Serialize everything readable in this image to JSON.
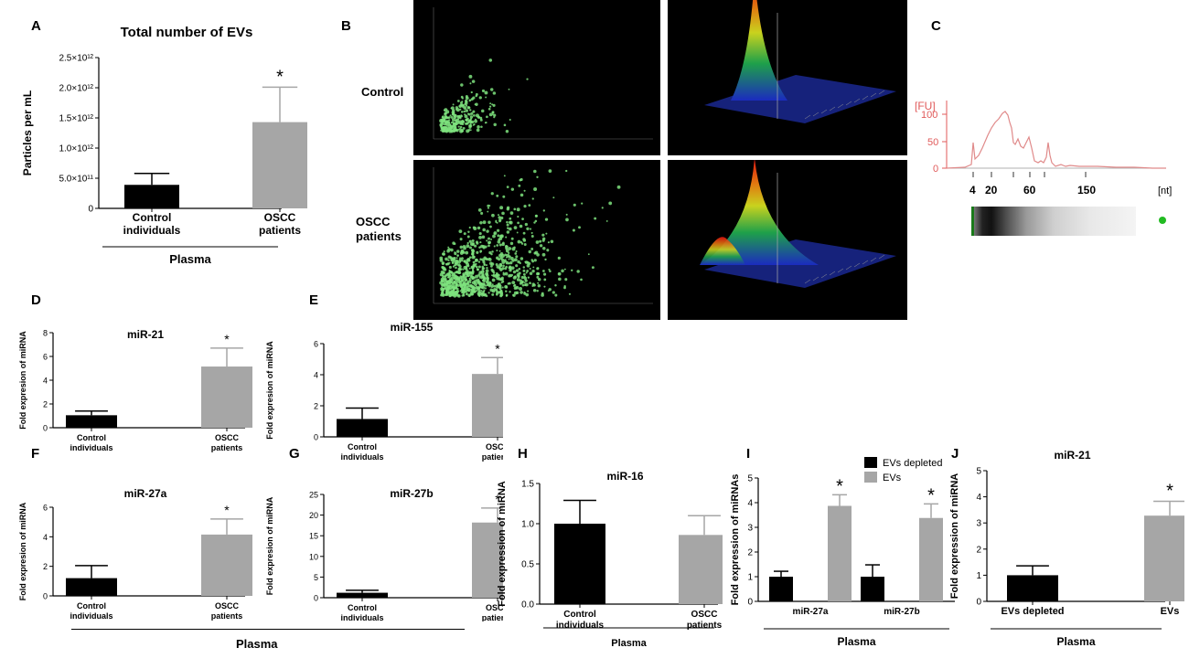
{
  "panels": {
    "A": {
      "letter": "A"
    },
    "B": {
      "letter": "B"
    },
    "C": {
      "letter": "C"
    },
    "D": {
      "letter": "D"
    },
    "E": {
      "letter": "E"
    },
    "F": {
      "letter": "F"
    },
    "G": {
      "letter": "G"
    },
    "H": {
      "letter": "H"
    },
    "I": {
      "letter": "I"
    },
    "J": {
      "letter": "J"
    }
  },
  "nta": {
    "row_control": "Control",
    "row_oscc_1": "OSCC",
    "row_oscc_2": "patients"
  },
  "bioanalyzer": {
    "ylabel": "[FU]",
    "yticks": [
      "100",
      "50",
      "0"
    ],
    "xticks": [
      "4",
      "20",
      "60",
      "150"
    ],
    "xunit": "[nt]",
    "ladder_color": "#2a8a2a",
    "dot_color": "#22bb22"
  },
  "plasma_label": "Plasma",
  "chart_data": [
    {
      "id": "A",
      "type": "bar",
      "title": "Total number of EVs",
      "ylabel": "Particles per mL",
      "categories": [
        "Control individuals",
        "OSCC patients"
      ],
      "cat_lines": [
        [
          "Control",
          "individuals"
        ],
        [
          "OSCC",
          "patients"
        ]
      ],
      "values": [
        390000000000.0,
        1430000000000.0
      ],
      "errors": [
        190000000000.0,
        580000000000.0
      ],
      "ylim": [
        0,
        2500000000000.0
      ],
      "ytick_values": [
        0,
        500000000000.0,
        1000000000000.0,
        1500000000000.0,
        2000000000000.0,
        2500000000000.0
      ],
      "ytick_labels": [
        "0",
        "5.0×10¹¹",
        "1.0×10¹²",
        "1.5×10¹²",
        "2.0×10¹²",
        "2.5×10¹²"
      ],
      "significance": [
        "",
        "*"
      ],
      "group_label": "Plasma",
      "colors": [
        "#000000",
        "#a6a6a6"
      ]
    },
    {
      "id": "D",
      "type": "bar",
      "title": "miR-21",
      "ylabel": "Fold expresion of miRNA",
      "categories": [
        "Control individuals",
        "OSCC patients"
      ],
      "cat_lines": [
        [
          "Control",
          "individuals"
        ],
        [
          "OSCC",
          "patients"
        ]
      ],
      "values": [
        1.05,
        5.15
      ],
      "errors": [
        0.35,
        1.55
      ],
      "ylim": [
        0,
        8
      ],
      "ytick_values": [
        0,
        2,
        4,
        6,
        8
      ],
      "ytick_labels": [
        "0",
        "2",
        "4",
        "6",
        "8"
      ],
      "significance": [
        "",
        "*"
      ],
      "colors": [
        "#000000",
        "#a6a6a6"
      ]
    },
    {
      "id": "E",
      "type": "bar",
      "title": "miR-155",
      "ylabel": "Fold expresion of miRNA",
      "categories": [
        "Control individuals",
        "OSCC patients"
      ],
      "cat_lines": [
        [
          "Control",
          "individuals"
        ],
        [
          "OSCC",
          "patients"
        ]
      ],
      "values": [
        1.15,
        4.05
      ],
      "errors": [
        0.7,
        1.05
      ],
      "ylim": [
        0,
        6
      ],
      "ytick_values": [
        0,
        2,
        4,
        6
      ],
      "ytick_labels": [
        "0",
        "2",
        "4",
        "6"
      ],
      "significance": [
        "",
        "*"
      ],
      "colors": [
        "#000000",
        "#a6a6a6"
      ]
    },
    {
      "id": "F",
      "type": "bar",
      "title": "miR-27a",
      "ylabel": "Fold expresion of miRNA",
      "categories": [
        "Control individuals",
        "OSCC patients"
      ],
      "cat_lines": [
        [
          "Control",
          "individuals"
        ],
        [
          "OSCC",
          "patients"
        ]
      ],
      "values": [
        1.2,
        4.15
      ],
      "errors": [
        0.85,
        1.05
      ],
      "ylim": [
        0,
        6
      ],
      "ytick_values": [
        0,
        2,
        4,
        6
      ],
      "ytick_labels": [
        "0",
        "2",
        "4",
        "6"
      ],
      "significance": [
        "",
        "*"
      ],
      "colors": [
        "#000000",
        "#a6a6a6"
      ]
    },
    {
      "id": "G",
      "type": "bar",
      "title": "miR-27b",
      "ylabel": "Fold expresion of miRNA",
      "categories": [
        "Control individuals",
        "OSCC patients"
      ],
      "cat_lines": [
        [
          "Control",
          "individuals"
        ],
        [
          "OSCC",
          "patients"
        ]
      ],
      "values": [
        1.2,
        18.2
      ],
      "errors": [
        0.6,
        3.5
      ],
      "ylim": [
        0,
        25
      ],
      "ytick_values": [
        0,
        5,
        10,
        15,
        20,
        25
      ],
      "ytick_labels": [
        "0",
        "5",
        "10",
        "15",
        "20",
        "25"
      ],
      "significance": [
        "",
        "*"
      ],
      "colors": [
        "#000000",
        "#a6a6a6"
      ]
    },
    {
      "id": "H",
      "type": "bar",
      "title": "miR-16",
      "ylabel": "Fold expression of miRNA",
      "categories": [
        "Control individuals",
        "OSCC patients"
      ],
      "cat_lines": [
        [
          "Control",
          "individuals"
        ],
        [
          "OSCC",
          "patients"
        ]
      ],
      "values": [
        1.0,
        0.86
      ],
      "errors": [
        0.29,
        0.24
      ],
      "ylim": [
        0,
        1.5
      ],
      "ytick_values": [
        0,
        0.5,
        1.0,
        1.5
      ],
      "ytick_labels": [
        "0.0",
        "0.5",
        "1.0",
        "1.5"
      ],
      "significance": [
        "",
        ""
      ],
      "group_label": "Plasma",
      "colors": [
        "#000000",
        "#a6a6a6"
      ]
    },
    {
      "id": "I",
      "type": "bar",
      "title": "",
      "ylabel": "Fold expression of miRNAs",
      "categories": [
        "miR-27a",
        "miR-27b"
      ],
      "series": [
        {
          "name": "EVs depleted",
          "values": [
            1.0,
            1.0
          ],
          "errors": [
            0.22,
            0.48
          ],
          "color": "#000000",
          "significance": [
            "",
            ""
          ]
        },
        {
          "name": "EVs",
          "values": [
            3.87,
            3.38
          ],
          "errors": [
            0.45,
            0.57
          ],
          "color": "#a6a6a6",
          "significance": [
            "*",
            "*"
          ]
        }
      ],
      "ylim": [
        0,
        5
      ],
      "ytick_values": [
        0,
        1,
        2,
        3,
        4,
        5
      ],
      "ytick_labels": [
        "0",
        "1",
        "2",
        "3",
        "4",
        "5"
      ],
      "legend": "top-right",
      "group_label": "Plasma"
    },
    {
      "id": "J",
      "type": "bar",
      "title": "miR-21",
      "ylabel": "Fold expression of miRNA",
      "categories": [
        "EVs depleted",
        "EVs"
      ],
      "cat_lines": [
        [
          "EVs depleted"
        ],
        [
          "EVs"
        ]
      ],
      "values": [
        1.0,
        3.28
      ],
      "errors": [
        0.36,
        0.55
      ],
      "ylim": [
        0,
        5
      ],
      "ytick_values": [
        0,
        1,
        2,
        3,
        4,
        5
      ],
      "ytick_labels": [
        "0",
        "1",
        "2",
        "3",
        "4",
        "5"
      ],
      "significance": [
        "",
        "*"
      ],
      "group_label": "Plasma",
      "colors": [
        "#000000",
        "#a6a6a6"
      ]
    }
  ]
}
